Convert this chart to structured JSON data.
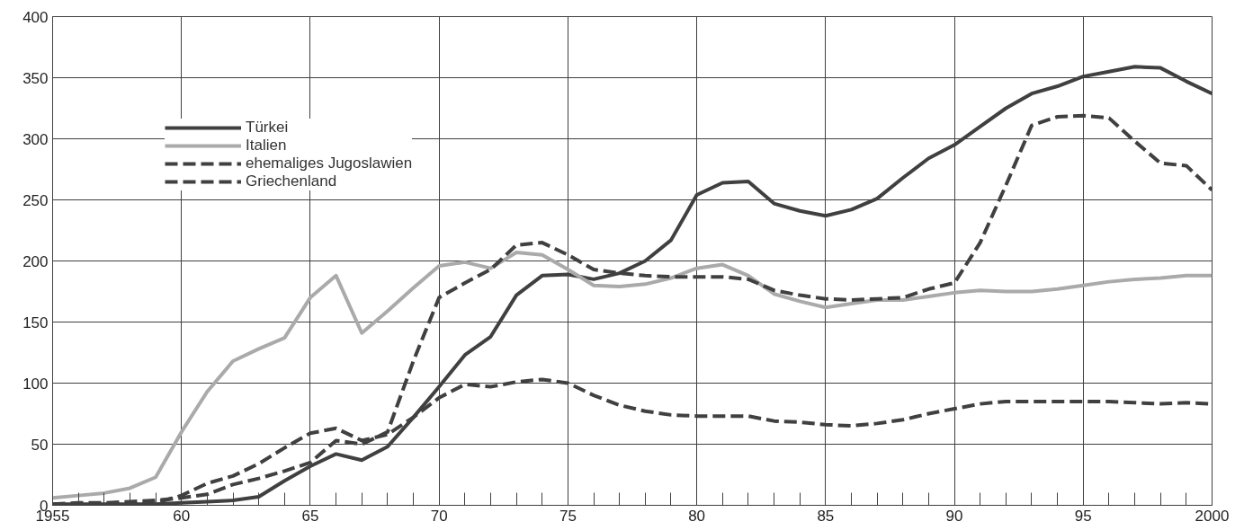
{
  "chart_data": {
    "type": "line",
    "x": [
      1955,
      1956,
      1957,
      1958,
      1959,
      1960,
      1961,
      1962,
      1963,
      1964,
      1965,
      1966,
      1967,
      1968,
      1969,
      1970,
      1971,
      1972,
      1973,
      1974,
      1975,
      1976,
      1977,
      1978,
      1979,
      1980,
      1981,
      1982,
      1983,
      1984,
      1985,
      1986,
      1987,
      1988,
      1989,
      1990,
      1991,
      1992,
      1993,
      1994,
      1995,
      1996,
      1997,
      1998,
      1999,
      2000
    ],
    "series": [
      {
        "name": "Türkei",
        "color": "#404040",
        "line_style": "solid",
        "values": [
          1,
          1,
          1,
          1,
          1,
          2,
          3,
          4,
          7,
          20,
          32,
          42,
          37,
          48,
          72,
          97,
          123,
          138,
          172,
          188,
          189,
          185,
          190,
          200,
          217,
          254,
          264,
          265,
          247,
          241,
          237,
          242,
          251,
          268,
          284,
          295,
          310,
          325,
          337,
          343,
          351,
          355,
          359,
          358,
          347,
          337
        ]
      },
      {
        "name": "Italien",
        "color": "#aaaaaa",
        "line_style": "solid",
        "values": [
          6,
          8,
          10,
          14,
          23,
          60,
          93,
          118,
          128,
          137,
          170,
          188,
          141,
          159,
          178,
          196,
          199,
          194,
          207,
          205,
          193,
          180,
          179,
          181,
          186,
          194,
          197,
          188,
          173,
          167,
          162,
          165,
          168,
          168,
          171,
          174,
          176,
          175,
          175,
          177,
          180,
          183,
          185,
          186,
          188,
          188
        ]
      },
      {
        "name": "ehemaliges Jugoslawien",
        "color": "#404040",
        "line_style": "dashed",
        "values": [
          1,
          2,
          2,
          3,
          4,
          6,
          9,
          17,
          22,
          28,
          35,
          53,
          50,
          60,
          118,
          170,
          182,
          193,
          213,
          215,
          205,
          193,
          190,
          188,
          187,
          187,
          187,
          185,
          176,
          172,
          169,
          168,
          169,
          170,
          177,
          182,
          215,
          262,
          311,
          318,
          319,
          317,
          298,
          280,
          278,
          258
        ]
      },
      {
        "name": "Griechenland",
        "color": "#404040",
        "line_style": "dashed",
        "values": [
          0,
          0,
          1,
          1,
          2,
          8,
          18,
          24,
          34,
          47,
          59,
          63,
          53,
          58,
          72,
          88,
          99,
          97,
          101,
          103,
          100,
          90,
          82,
          77,
          74,
          73,
          73,
          73,
          69,
          68,
          66,
          65,
          67,
          70,
          75,
          79,
          83,
          85,
          85,
          85,
          85,
          85,
          84,
          83,
          84,
          83
        ]
      }
    ],
    "xlim": [
      1955,
      2000
    ],
    "xticks": [
      {
        "value": 1955,
        "label": "1955"
      },
      {
        "value": 1960,
        "label": "60"
      },
      {
        "value": 1965,
        "label": "65"
      },
      {
        "value": 1970,
        "label": "70"
      },
      {
        "value": 1975,
        "label": "75"
      },
      {
        "value": 1980,
        "label": "80"
      },
      {
        "value": 1985,
        "label": "85"
      },
      {
        "value": 1990,
        "label": "90"
      },
      {
        "value": 1995,
        "label": "95"
      },
      {
        "value": 2000,
        "label": "2000"
      }
    ],
    "ylim": [
      0,
      400
    ],
    "yticks": [
      0,
      50,
      100,
      150,
      200,
      250,
      300,
      350,
      400
    ],
    "grid": true,
    "legend": "top left"
  }
}
